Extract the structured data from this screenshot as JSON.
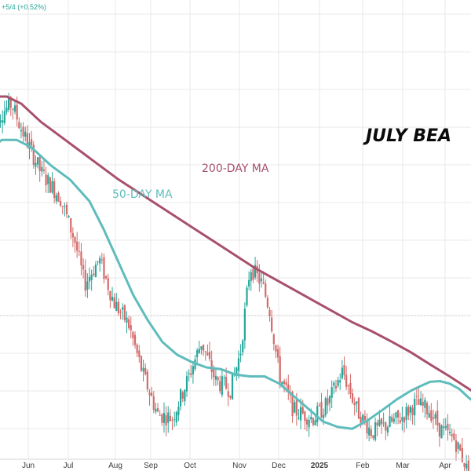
{
  "top_readout": {
    "text": "+5/4 (+0.52%)",
    "color": "#26a69a"
  },
  "chart_data": {
    "type": "line",
    "title": "",
    "annotation": "JULY BEA",
    "xlabel": "",
    "ylabel": "",
    "grid": true,
    "legend": "none",
    "x_ticks": [
      "Jun",
      "Jul",
      "Aug",
      "Sep",
      "Oct",
      "Nov",
      "Dec",
      "2025",
      "Feb",
      "Mar",
      "Apr"
    ],
    "colors": {
      "ma50": "#5fbcbc",
      "ma200": "#a8506b",
      "up": "#26a69a",
      "down": "#d46a6a",
      "grid": "#e9e9e9",
      "axis": "#bdbdbd"
    },
    "series": [
      {
        "name": "200-DAY MA",
        "values": [
          [
            0,
            0.95
          ],
          [
            0.03,
            0.95
          ],
          [
            0.06,
            0.93
          ],
          [
            0.1,
            0.88
          ],
          [
            0.14,
            0.84
          ],
          [
            0.18,
            0.8
          ],
          [
            0.22,
            0.76
          ],
          [
            0.26,
            0.72
          ],
          [
            0.3,
            0.685
          ],
          [
            0.34,
            0.65
          ],
          [
            0.38,
            0.615
          ],
          [
            0.42,
            0.58
          ],
          [
            0.46,
            0.545
          ],
          [
            0.5,
            0.51
          ],
          [
            0.54,
            0.475
          ],
          [
            0.58,
            0.445
          ],
          [
            0.62,
            0.415
          ],
          [
            0.66,
            0.385
          ],
          [
            0.7,
            0.355
          ],
          [
            0.74,
            0.325
          ],
          [
            0.78,
            0.3
          ],
          [
            0.82,
            0.272
          ],
          [
            0.86,
            0.242
          ],
          [
            0.9,
            0.208
          ],
          [
            0.94,
            0.175
          ],
          [
            0.98,
            0.14
          ],
          [
            1,
            0.122
          ]
        ]
      },
      {
        "name": "50-DAY MA",
        "values": [
          [
            0,
            0.81
          ],
          [
            0.02,
            0.83
          ],
          [
            0.05,
            0.83
          ],
          [
            0.08,
            0.81
          ],
          [
            0.12,
            0.76
          ],
          [
            0.16,
            0.72
          ],
          [
            0.2,
            0.66
          ],
          [
            0.23,
            0.58
          ],
          [
            0.26,
            0.49
          ],
          [
            0.29,
            0.4
          ],
          [
            0.32,
            0.33
          ],
          [
            0.35,
            0.27
          ],
          [
            0.38,
            0.235
          ],
          [
            0.41,
            0.215
          ],
          [
            0.44,
            0.2
          ],
          [
            0.47,
            0.195
          ],
          [
            0.5,
            0.18
          ],
          [
            0.53,
            0.175
          ],
          [
            0.56,
            0.175
          ],
          [
            0.59,
            0.155
          ],
          [
            0.62,
            0.12
          ],
          [
            0.65,
            0.085
          ],
          [
            0.68,
            0.05
          ],
          [
            0.71,
            0.035
          ],
          [
            0.74,
            0.03
          ],
          [
            0.77,
            0.052
          ],
          [
            0.8,
            0.08
          ],
          [
            0.83,
            0.11
          ],
          [
            0.86,
            0.135
          ],
          [
            0.88,
            0.148
          ],
          [
            0.9,
            0.16
          ],
          [
            0.92,
            0.162
          ],
          [
            0.94,
            0.155
          ],
          [
            0.96,
            0.14
          ],
          [
            0.98,
            0.115
          ],
          [
            1,
            0.095
          ]
        ]
      }
    ],
    "price_path": [
      [
        0,
        0.88
      ],
      [
        0.04,
        0.93
      ],
      [
        0.06,
        0.86
      ],
      [
        0.1,
        0.74
      ],
      [
        0.14,
        0.67
      ],
      [
        0.17,
        0.55
      ],
      [
        0.19,
        0.43
      ],
      [
        0.22,
        0.5
      ],
      [
        0.25,
        0.38
      ],
      [
        0.28,
        0.32
      ],
      [
        0.31,
        0.18
      ],
      [
        0.34,
        0.07
      ],
      [
        0.37,
        0.06
      ],
      [
        0.4,
        0.16
      ],
      [
        0.43,
        0.27
      ],
      [
        0.46,
        0.16
      ],
      [
        0.49,
        0.14
      ],
      [
        0.51,
        0.24
      ],
      [
        0.53,
        0.48
      ],
      [
        0.555,
        0.43
      ],
      [
        0.57,
        0.36
      ],
      [
        0.59,
        0.18
      ],
      [
        0.62,
        0.08
      ],
      [
        0.66,
        0.06
      ],
      [
        0.69,
        0.1
      ],
      [
        0.72,
        0.19
      ],
      [
        0.75,
        0.08
      ],
      [
        0.78,
        0.02
      ],
      [
        0.81,
        0.04
      ],
      [
        0.84,
        0.06
      ],
      [
        0.87,
        0.1
      ],
      [
        0.9,
        0.08
      ],
      [
        0.92,
        0.03
      ],
      [
        0.95,
        0.0
      ],
      [
        0.97,
        -0.06
      ],
      [
        0.98,
        -0.11
      ],
      [
        1,
        0.02
      ]
    ]
  }
}
